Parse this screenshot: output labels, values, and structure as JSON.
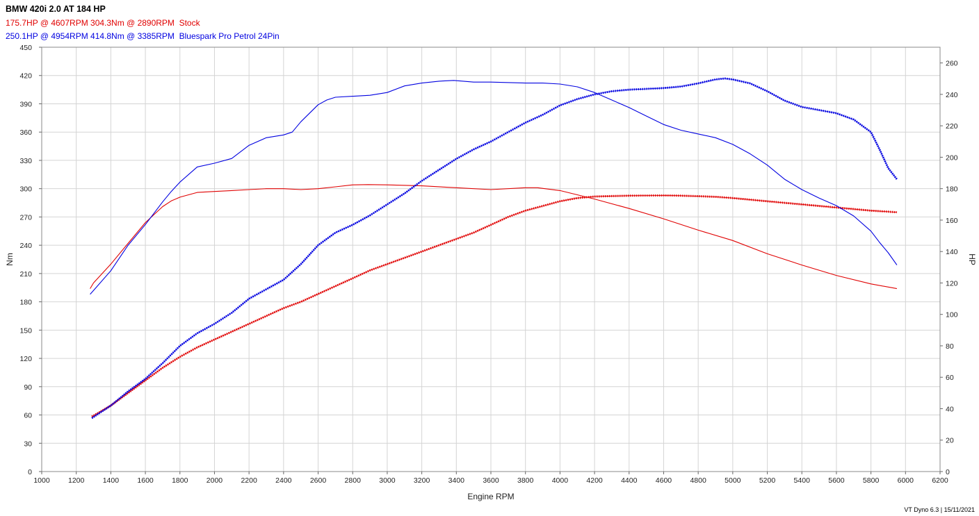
{
  "header": {
    "title": "BMW 420i 2.0 AT 184 HP",
    "stock_line": "175.7HP @ 4607RPM 304.3Nm @ 2890RPM  Stock",
    "tuned_line": "250.1HP @ 4954RPM 414.8Nm @ 3385RPM  Bluespark Pro Petrol 24Pin"
  },
  "footer": "VT Dyno 6.3 | 15/11/2021",
  "colors": {
    "stock": "#e00000",
    "tuned": "#0000e0",
    "grid": "#d4d4d4"
  },
  "chart_data": {
    "type": "line",
    "xlabel": "Engine RPM",
    "ylabel_left": "Nm",
    "ylabel_right": "HP",
    "xlim": [
      1000,
      6200
    ],
    "x_ticks": [
      1000,
      1200,
      1400,
      1600,
      1800,
      2000,
      2200,
      2400,
      2600,
      2800,
      3000,
      3200,
      3400,
      3600,
      3800,
      4000,
      4200,
      4400,
      4600,
      4800,
      5000,
      5200,
      5400,
      5600,
      5800,
      6000,
      6200
    ],
    "ylim_left": [
      0,
      450
    ],
    "y_ticks_left": [
      0,
      30,
      60,
      90,
      120,
      150,
      180,
      210,
      240,
      270,
      300,
      330,
      360,
      390,
      420,
      450
    ],
    "ylim_right": [
      0,
      270
    ],
    "y_ticks_right": [
      0,
      20,
      40,
      60,
      80,
      100,
      120,
      140,
      160,
      180,
      200,
      220,
      240,
      260
    ],
    "grid": true,
    "series": [
      {
        "name": "Stock",
        "quantity": "torque",
        "axis": "left",
        "color": "#e00000",
        "x": [
          1280,
          1300,
          1400,
          1500,
          1600,
          1700,
          1750,
          1800,
          1900,
          2000,
          2100,
          2200,
          2300,
          2400,
          2500,
          2600,
          2700,
          2800,
          2890,
          3000,
          3200,
          3400,
          3600,
          3800,
          3870,
          4000,
          4200,
          4400,
          4600,
          4800,
          5000,
          5200,
          5400,
          5600,
          5800,
          5950
        ],
        "y": [
          194,
          200,
          220,
          242,
          264,
          281,
          287,
          291,
          296,
          297,
          298,
          299,
          300,
          300,
          299,
          300,
          302,
          304,
          304.3,
          304,
          303,
          301,
          299,
          301,
          301,
          298,
          289,
          279,
          268,
          256,
          245,
          231,
          219,
          208,
          199,
          194
        ]
      },
      {
        "name": "Stock",
        "quantity": "power",
        "axis": "right",
        "color": "#e00000",
        "x": [
          1290,
          1400,
          1500,
          1600,
          1700,
          1800,
          1900,
          2000,
          2100,
          2200,
          2300,
          2400,
          2500,
          2600,
          2700,
          2800,
          2900,
          3000,
          3100,
          3200,
          3300,
          3400,
          3500,
          3600,
          3700,
          3800,
          3900,
          4000,
          4100,
          4200,
          4300,
          4400,
          4500,
          4607,
          4700,
          4800,
          4900,
          5000,
          5200,
          5400,
          5600,
          5800,
          5950
        ],
        "y": [
          35,
          42,
          50,
          58,
          66,
          73,
          79,
          84,
          89,
          94,
          99,
          104,
          108,
          113,
          118,
          123,
          128,
          132,
          136,
          140,
          144,
          148,
          152,
          157,
          162,
          166,
          169,
          172,
          174,
          175,
          175.3,
          175.5,
          175.6,
          175.7,
          175.5,
          175.2,
          174.8,
          174,
          172,
          170,
          168,
          166,
          165
        ]
      },
      {
        "name": "Bluespark Pro Petrol 24Pin",
        "quantity": "torque",
        "axis": "left",
        "color": "#0000e0",
        "x": [
          1280,
          1300,
          1400,
          1500,
          1600,
          1700,
          1750,
          1800,
          1900,
          2000,
          2100,
          2200,
          2300,
          2400,
          2450,
          2500,
          2600,
          2650,
          2700,
          2800,
          2900,
          3000,
          3100,
          3200,
          3300,
          3385,
          3500,
          3600,
          3800,
          3900,
          4000,
          4100,
          4200,
          4300,
          4400,
          4500,
          4600,
          4700,
          4800,
          4900,
          5000,
          5100,
          5200,
          5300,
          5400,
          5500,
          5600,
          5700,
          5800,
          5850,
          5900,
          5950
        ],
        "y": [
          188,
          192,
          213,
          240,
          262,
          286,
          297,
          307,
          323,
          327,
          332,
          346,
          354,
          357,
          360,
          371,
          389,
          394,
          397,
          398,
          399,
          402,
          409,
          412,
          414,
          414.8,
          413,
          413,
          412,
          412,
          411,
          408,
          402,
          394,
          386,
          377,
          368,
          362,
          358,
          354,
          347,
          337,
          325,
          310,
          299,
          290,
          282,
          271,
          255,
          243,
          232,
          219
        ]
      },
      {
        "name": "Bluespark Pro Petrol 24Pin",
        "quantity": "power",
        "axis": "right",
        "color": "#0000e0",
        "x": [
          1290,
          1400,
          1500,
          1600,
          1700,
          1800,
          1900,
          2000,
          2100,
          2200,
          2300,
          2400,
          2450,
          2500,
          2600,
          2700,
          2800,
          2900,
          3000,
          3100,
          3200,
          3300,
          3400,
          3500,
          3600,
          3700,
          3800,
          3900,
          4000,
          4100,
          4200,
          4300,
          4400,
          4500,
          4600,
          4700,
          4800,
          4900,
          4954,
          5000,
          5100,
          5200,
          5300,
          5400,
          5500,
          5600,
          5700,
          5800,
          5850,
          5900,
          5950
        ],
        "y": [
          34,
          42,
          51,
          59,
          69,
          80,
          88,
          94,
          101,
          110,
          116,
          122,
          127,
          132,
          144,
          152,
          157,
          163,
          170,
          177,
          185,
          192,
          199,
          205,
          210,
          216,
          222,
          227,
          233,
          237,
          240,
          242,
          243,
          243.5,
          244,
          245,
          247,
          249.5,
          250.1,
          249.5,
          247,
          242,
          236,
          232,
          230,
          228,
          224,
          216,
          205,
          193,
          186
        ]
      }
    ]
  }
}
